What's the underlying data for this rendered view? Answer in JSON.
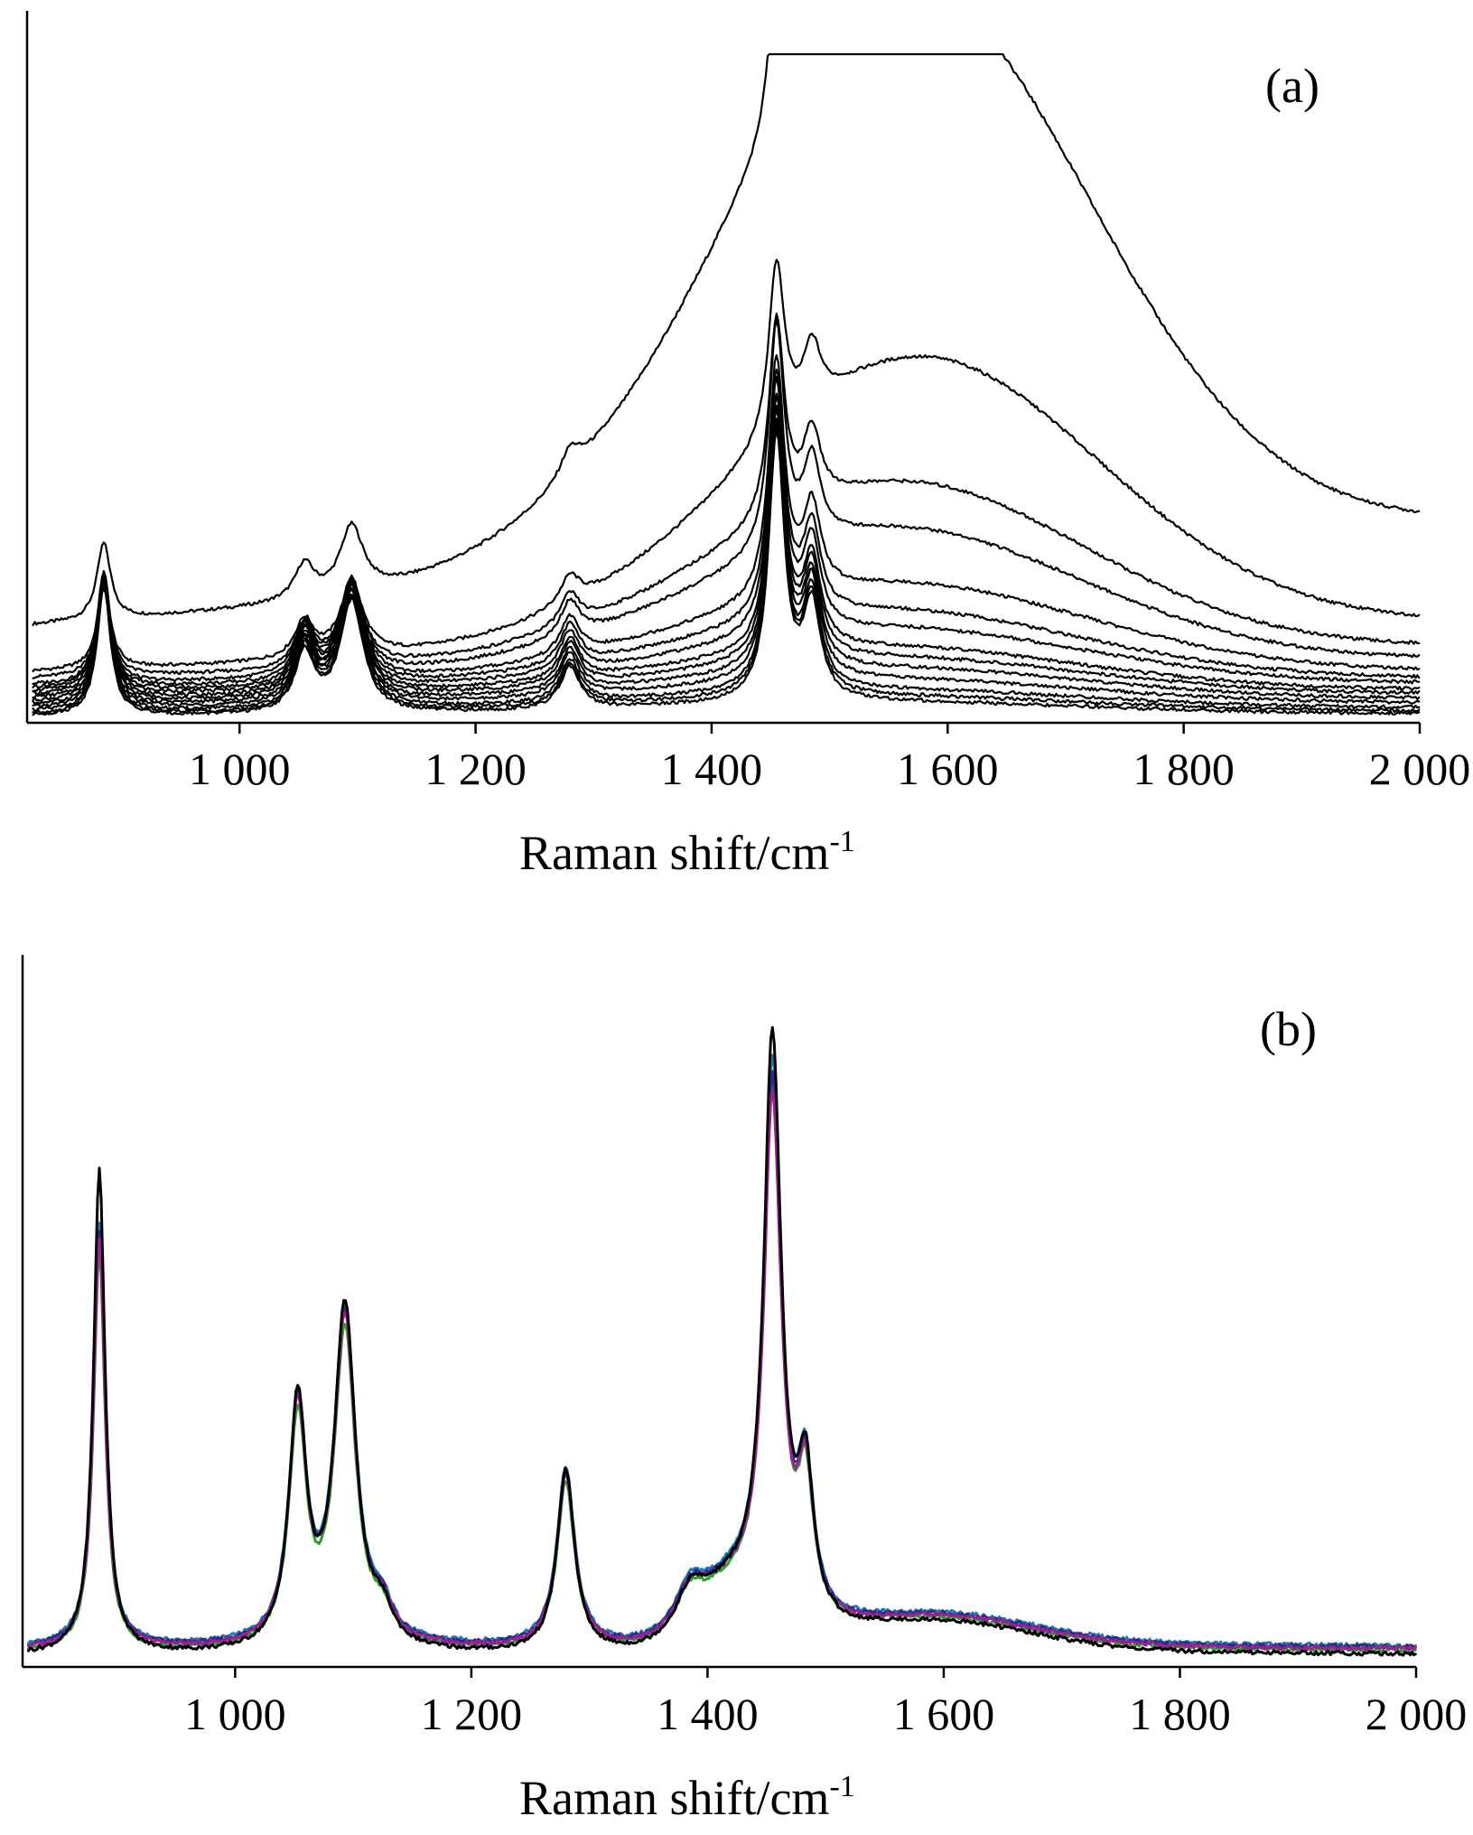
{
  "chart_data": [
    {
      "type": "line",
      "panel_label": "(a)",
      "xlabel": "Raman shift/cm",
      "xlabel_sup": "-1",
      "ylabel": "",
      "xlim": [
        820,
        2000
      ],
      "ylim": [
        0,
        100
      ],
      "xticks": [
        1000,
        1200,
        1400,
        1600,
        1800,
        2000
      ],
      "xtick_labels": [
        "1 000",
        "1 200",
        "1 400",
        "1 600",
        "1 800",
        "2 000"
      ],
      "grid": false,
      "legend": "none",
      "peaks_cm": [
        885,
        1055,
        1095,
        1280,
        1455,
        1485
      ],
      "peak_intensities": [
        0.48,
        0.22,
        0.42,
        0.16,
        1.0,
        0.35
      ],
      "series": [
        {
          "baseline": 14,
          "broad_amp": 84,
          "broad_center": 1540,
          "broad_width": 165,
          "peak_scale": 24,
          "color": "#000000"
        },
        {
          "baseline": 7,
          "broad_amp": 41,
          "broad_center": 1550,
          "broad_width": 165,
          "peak_scale": 26,
          "color": "#000000"
        },
        {
          "baseline": 6,
          "broad_amp": 26,
          "broad_center": 1530,
          "broad_width": 170,
          "peak_scale": 30,
          "color": "#000000"
        },
        {
          "baseline": 5,
          "broad_amp": 21,
          "broad_center": 1520,
          "broad_width": 175,
          "peak_scale": 34,
          "color": "#000000"
        },
        {
          "baseline": 4.5,
          "broad_amp": 14,
          "broad_center": 1520,
          "broad_width": 180,
          "peak_scale": 36,
          "color": "#000000"
        },
        {
          "baseline": 4,
          "broad_amp": 11,
          "broad_center": 1510,
          "broad_width": 180,
          "peak_scale": 37,
          "color": "#000000"
        },
        {
          "baseline": 3.5,
          "broad_amp": 9,
          "broad_center": 1510,
          "broad_width": 185,
          "peak_scale": 38,
          "color": "#000000"
        },
        {
          "baseline": 3,
          "broad_amp": 7,
          "broad_center": 1500,
          "broad_width": 185,
          "peak_scale": 38,
          "color": "#000000"
        },
        {
          "baseline": 2.5,
          "broad_amp": 6,
          "broad_center": 1500,
          "broad_width": 190,
          "peak_scale": 39,
          "color": "#000000"
        },
        {
          "baseline": 2,
          "broad_amp": 5,
          "broad_center": 1500,
          "broad_width": 190,
          "peak_scale": 39,
          "color": "#000000"
        },
        {
          "baseline": 1.5,
          "broad_amp": 4,
          "broad_center": 1490,
          "broad_width": 195,
          "peak_scale": 40,
          "color": "#000000"
        },
        {
          "baseline": 1,
          "broad_amp": 3,
          "broad_center": 1490,
          "broad_width": 195,
          "peak_scale": 40,
          "color": "#000000"
        },
        {
          "baseline": 0.6,
          "broad_amp": 2.5,
          "broad_center": 1480,
          "broad_width": 200,
          "peak_scale": 40,
          "color": "#000000"
        },
        {
          "baseline": 0.3,
          "broad_amp": 2,
          "broad_center": 1480,
          "broad_width": 200,
          "peak_scale": 40,
          "color": "#000000"
        }
      ]
    },
    {
      "type": "line",
      "panel_label": "(b)",
      "xlabel": "Raman shift/cm",
      "xlabel_sup": "-1",
      "ylabel": "",
      "xlim": [
        820,
        2000
      ],
      "ylim": [
        0,
        100
      ],
      "xticks": [
        1000,
        1200,
        1400,
        1600,
        1800,
        2000
      ],
      "xtick_labels": [
        "1 000",
        "1 200",
        "1 400",
        "1 600",
        "1 800",
        "2 000"
      ],
      "grid": false,
      "legend": "none",
      "peaks_cm": [
        885,
        1053,
        1093,
        1125,
        1280,
        1385,
        1455,
        1483
      ],
      "peak_shape": [
        [
          1.0,
          6
        ],
        [
          0.43,
          9
        ],
        [
          0.6,
          11
        ],
        [
          0.05,
          10
        ],
        [
          0.32,
          9
        ],
        [
          0.06,
          14
        ],
        [
          1.0,
          9
        ],
        [
          0.25,
          8
        ]
      ],
      "series": [
        {
          "color": "#2ca02c",
          "p1": 70,
          "p1455": 90,
          "scale_mid": 0.92,
          "baseline": 1.5
        },
        {
          "color": "#1f77b4",
          "p1": 74,
          "p1455": 94,
          "scale_mid": 0.97,
          "baseline": 2.2
        },
        {
          "color": "#2a2a8c",
          "p1": 73,
          "p1455": 91,
          "scale_mid": 0.96,
          "baseline": 2.0
        },
        {
          "color": "#9b2090",
          "p1": 72,
          "p1455": 88,
          "scale_mid": 0.95,
          "baseline": 1.8
        },
        {
          "color": "#000000",
          "p1": 85,
          "p1455": 100,
          "scale_mid": 1.0,
          "baseline": 1.0
        }
      ]
    }
  ]
}
